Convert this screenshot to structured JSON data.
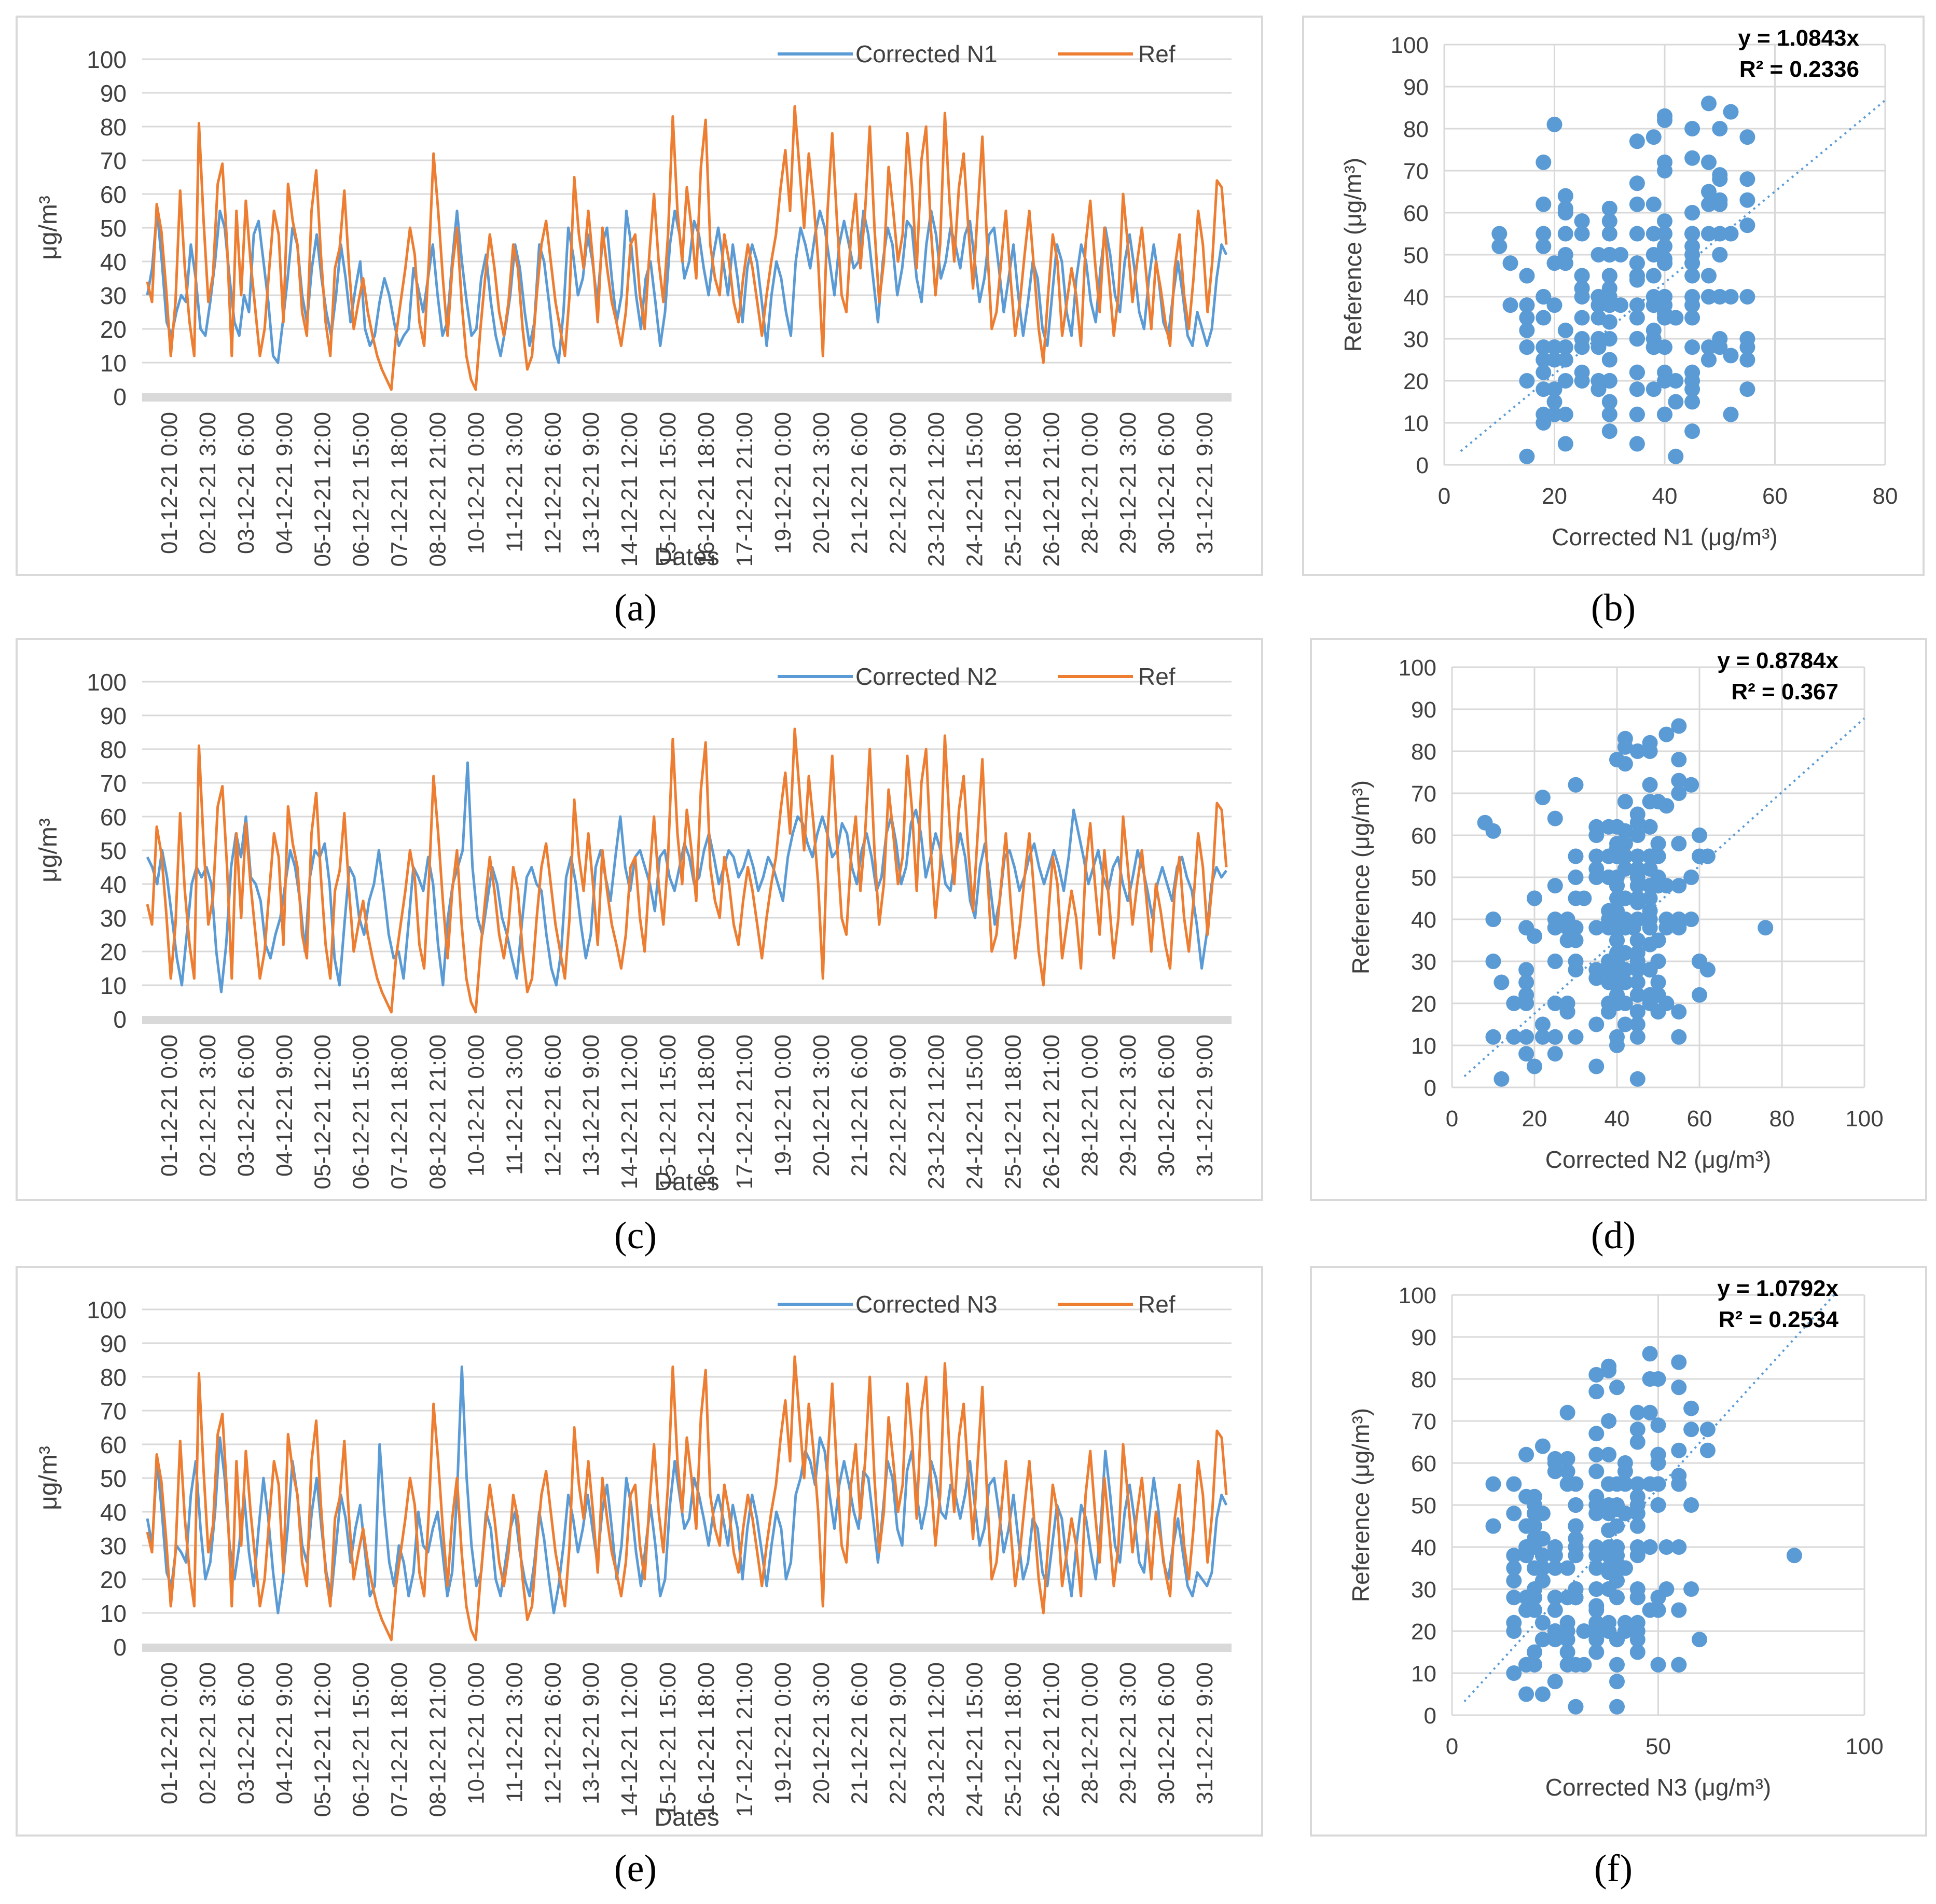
{
  "colors": {
    "blue": "#5b9bd5",
    "orange": "#ed7d31",
    "grid": "#d9d9d9",
    "text": "#404040",
    "axisBand": "#d9d9d9"
  },
  "date_labels": [
    "01-12-21 0:00",
    "02-12-21 3:00",
    "03-12-21 6:00",
    "04-12-21 9:00",
    "05-12-21 12:00",
    "06-12-21 15:00",
    "07-12-21 18:00",
    "08-12-21 21:00",
    "10-12-21 0:00",
    "11-12-21 3:00",
    "12-12-21 6:00",
    "13-12-21 9:00",
    "14-12-21 12:00",
    "15-12-21 15:00",
    "16-12-21 18:00",
    "17-12-21 21:00",
    "19-12-21 0:00",
    "20-12-21 3:00",
    "21-12-21 6:00",
    "22-12-21 9:00",
    "23-12-21 12:00",
    "24-12-21 15:00",
    "25-12-21 18:00",
    "26-12-21 21:00",
    "28-12-21 0:00",
    "29-12-21 3:00",
    "30-12-21 6:00",
    "31-12-21 9:00"
  ],
  "ref_series": [
    34,
    28,
    57,
    49,
    32,
    12,
    28,
    61,
    38,
    22,
    12,
    81,
    52,
    28,
    36,
    63,
    69,
    45,
    12,
    55,
    30,
    58,
    40,
    26,
    12,
    20,
    38,
    55,
    48,
    22,
    63,
    52,
    45,
    25,
    18,
    55,
    67,
    42,
    22,
    12,
    38,
    44,
    61,
    38,
    20,
    28,
    35,
    25,
    18,
    12,
    8,
    5,
    2,
    18,
    28,
    38,
    50,
    42,
    22,
    15,
    40,
    72,
    55,
    35,
    18,
    38,
    50,
    28,
    12,
    5,
    2,
    20,
    35,
    48,
    38,
    25,
    18,
    28,
    45,
    38,
    20,
    8,
    12,
    30,
    45,
    52,
    40,
    28,
    20,
    12,
    30,
    65,
    48,
    38,
    55,
    40,
    22,
    50,
    38,
    28,
    22,
    15,
    25,
    45,
    48,
    30,
    20,
    42,
    60,
    40,
    28,
    48,
    83,
    55,
    40,
    62,
    50,
    35,
    68,
    82,
    45,
    35,
    30,
    48,
    40,
    28,
    22,
    35,
    45,
    38,
    28,
    18,
    30,
    40,
    48,
    62,
    73,
    55,
    86,
    68,
    50,
    72,
    58,
    40,
    12,
    55,
    78,
    52,
    30,
    25,
    48,
    60,
    38,
    55,
    80,
    50,
    28,
    40,
    68,
    55,
    40,
    48,
    78,
    62,
    38,
    70,
    80,
    50,
    30,
    45,
    84,
    58,
    40,
    62,
    72,
    50,
    32,
    55,
    77,
    45,
    20,
    25,
    40,
    55,
    35,
    18,
    28,
    42,
    55,
    38,
    20,
    10,
    30,
    48,
    40,
    18,
    28,
    38,
    30,
    15,
    45,
    58,
    40,
    25,
    50,
    35,
    18,
    30,
    60,
    45,
    28,
    40,
    50,
    35,
    20,
    40,
    32,
    22,
    15,
    38,
    48,
    30,
    20,
    35,
    55,
    45,
    25,
    40,
    64,
    62,
    45
  ],
  "panels": [
    {
      "id": "a",
      "caption": "(a)",
      "title": "Corrected N1",
      "legend_blue": "Corrected N1",
      "legend_orange": "Ref",
      "ylabel": "μg/m³",
      "xlabel": "Dates",
      "y_ticks": [
        "0",
        "10",
        "20",
        "30",
        "40",
        "50",
        "60",
        "70",
        "80",
        "90",
        "100"
      ]
    },
    {
      "id": "c",
      "caption": "(c)",
      "title": "Corrected N2",
      "legend_blue": "Corrected N2",
      "legend_orange": "Ref",
      "ylabel": "μg/m³",
      "xlabel": "Dates",
      "y_ticks": [
        "0",
        "10",
        "20",
        "30",
        "40",
        "50",
        "60",
        "70",
        "80",
        "90",
        "100"
      ]
    },
    {
      "id": "e",
      "caption": "(e)",
      "title": "Corrected N3",
      "legend_blue": "Corrected N3",
      "legend_orange": "Ref",
      "ylabel": "μg/m³",
      "xlabel": "Dates",
      "y_ticks": [
        "0",
        "10",
        "20",
        "30",
        "40",
        "50",
        "60",
        "70",
        "80",
        "90",
        "100"
      ]
    }
  ],
  "scatter_panels": [
    {
      "id": "b",
      "caption": "(b)",
      "xlabel": "Corrected N1 (μg/m³)",
      "ylabel": "Reference (μg/m³)",
      "equation": "y = 1.0843x",
      "r2": "R² = 0.2336",
      "slope": 1.0843,
      "xmax": 80,
      "x_ticks": [
        "0",
        "20",
        "40",
        "60",
        "80"
      ],
      "y_ticks": [
        "0",
        "10",
        "20",
        "30",
        "40",
        "50",
        "60",
        "70",
        "80",
        "90",
        "100"
      ]
    },
    {
      "id": "d",
      "caption": "(d)",
      "xlabel": "Corrected N2 (μg/m³)",
      "ylabel": "Reference (μg/m³)",
      "equation": "y = 0.8784x",
      "r2": "R² = 0.367",
      "slope": 0.8784,
      "xmax": 100,
      "x_ticks": [
        "0",
        "20",
        "40",
        "60",
        "80",
        "100"
      ],
      "y_ticks": [
        "0",
        "10",
        "20",
        "30",
        "40",
        "50",
        "60",
        "70",
        "80",
        "90",
        "100"
      ]
    },
    {
      "id": "f",
      "caption": "(f)",
      "xlabel": "Corrected N3 (μg/m³)",
      "ylabel": "Reference (μg/m³)",
      "equation": "y = 1.0792x",
      "r2": "R² = 0.2534",
      "slope": 1.0792,
      "xmax": 100,
      "x_ticks": [
        "0",
        "50",
        "100"
      ],
      "y_ticks": [
        "0",
        "10",
        "20",
        "30",
        "40",
        "50",
        "60",
        "70",
        "80",
        "90",
        "100"
      ]
    }
  ],
  "chart_data": [
    {
      "type": "line",
      "panel": "a",
      "xlabel": "Dates",
      "ylabel": "μg/m³",
      "ylim": [
        0,
        100
      ],
      "series": [
        {
          "name": "Corrected N1",
          "values": [
            30,
            38,
            55,
            40,
            22,
            18,
            25,
            30,
            28,
            45,
            35,
            20,
            18,
            28,
            40,
            55,
            50,
            35,
            22,
            18,
            30,
            25,
            48,
            52,
            40,
            28,
            12,
            10,
            22,
            35,
            50,
            45,
            30,
            22,
            38,
            48,
            35,
            25,
            18,
            30,
            45,
            35,
            22,
            32,
            40,
            20,
            15,
            18,
            28,
            35,
            30,
            22,
            15,
            18,
            20,
            38,
            32,
            25,
            35,
            45,
            30,
            18,
            22,
            40,
            55,
            40,
            28,
            18,
            20,
            35,
            42,
            28,
            18,
            12,
            20,
            30,
            45,
            38,
            25,
            15,
            22,
            45,
            40,
            28,
            15,
            10,
            25,
            50,
            42,
            30,
            35,
            48,
            40,
            28,
            45,
            50,
            35,
            22,
            30,
            55,
            45,
            30,
            20,
            35,
            40,
            28,
            15,
            25,
            45,
            55,
            48,
            35,
            40,
            52,
            48,
            38,
            30,
            42,
            50,
            40,
            30,
            45,
            35,
            22,
            38,
            45,
            40,
            28,
            15,
            30,
            40,
            35,
            25,
            18,
            40,
            50,
            45,
            38,
            48,
            55,
            50,
            40,
            30,
            45,
            52,
            45,
            38,
            40,
            55,
            48,
            35,
            22,
            40,
            50,
            45,
            30,
            38,
            52,
            50,
            35,
            28,
            45,
            55,
            48,
            35,
            40,
            50,
            45,
            38,
            48,
            52,
            40,
            28,
            35,
            48,
            50,
            38,
            25,
            35,
            45,
            30,
            18,
            28,
            40,
            35,
            20,
            15,
            30,
            45,
            40,
            25,
            18,
            35,
            45,
            40,
            28,
            22,
            38,
            50,
            42,
            30,
            25,
            40,
            48,
            38,
            25,
            20,
            35,
            45,
            35,
            22,
            18,
            30,
            40,
            30,
            18,
            15,
            25,
            20,
            15,
            20,
            35,
            45,
            42
          ]
        },
        {
          "name": "Ref",
          "values": "ref_series"
        }
      ]
    },
    {
      "type": "scatter",
      "panel": "b",
      "xlabel": "Corrected N1 (μg/m³)",
      "ylabel": "Reference (μg/m³)",
      "xlim": [
        0,
        80
      ],
      "ylim": [
        0,
        100
      ],
      "trendline": "y = 1.0843x",
      "r2": 0.2336
    },
    {
      "type": "line",
      "panel": "c",
      "xlabel": "Dates",
      "ylabel": "μg/m³",
      "ylim": [
        0,
        100
      ],
      "series": [
        {
          "name": "Corrected N2",
          "values": [
            48,
            45,
            40,
            50,
            42,
            30,
            18,
            10,
            25,
            40,
            45,
            42,
            45,
            40,
            20,
            8,
            22,
            45,
            55,
            48,
            60,
            42,
            40,
            35,
            22,
            18,
            25,
            30,
            40,
            50,
            45,
            35,
            20,
            42,
            50,
            48,
            52,
            40,
            18,
            10,
            28,
            45,
            42,
            30,
            25,
            35,
            40,
            50,
            38,
            25,
            18,
            20,
            12,
            28,
            45,
            42,
            38,
            48,
            40,
            22,
            10,
            30,
            40,
            45,
            50,
            76,
            45,
            30,
            25,
            35,
            45,
            40,
            30,
            25,
            18,
            12,
            28,
            42,
            45,
            40,
            38,
            25,
            15,
            10,
            20,
            42,
            48,
            40,
            28,
            18,
            25,
            45,
            50,
            42,
            35,
            48,
            60,
            45,
            38,
            48,
            50,
            45,
            40,
            32,
            48,
            50,
            42,
            38,
            45,
            52,
            48,
            40,
            42,
            50,
            55,
            48,
            40,
            45,
            50,
            48,
            42,
            45,
            50,
            45,
            38,
            42,
            48,
            45,
            40,
            35,
            48,
            55,
            60,
            58,
            52,
            48,
            55,
            60,
            55,
            48,
            50,
            58,
            55,
            45,
            40,
            50,
            55,
            48,
            38,
            42,
            55,
            60,
            52,
            40,
            45,
            58,
            62,
            55,
            42,
            48,
            55,
            50,
            40,
            38,
            48,
            55,
            48,
            35,
            30,
            45,
            52,
            40,
            28,
            35,
            48,
            50,
            45,
            38,
            42,
            48,
            52,
            45,
            40,
            45,
            50,
            45,
            38,
            48,
            62,
            55,
            48,
            40,
            45,
            50,
            42,
            38,
            45,
            48,
            40,
            35,
            42,
            50,
            45,
            38,
            30,
            40,
            45,
            40,
            35,
            45,
            48,
            42,
            38,
            28,
            15,
            25,
            40,
            45,
            42,
            44
          ]
        },
        {
          "name": "Ref",
          "values": "ref_series"
        }
      ]
    },
    {
      "type": "scatter",
      "panel": "d",
      "xlabel": "Corrected N2 (μg/m³)",
      "ylabel": "Reference (μg/m³)",
      "xlim": [
        0,
        100
      ],
      "ylim": [
        0,
        100
      ],
      "trendline": "y = 0.8784x",
      "r2": 0.367
    },
    {
      "type": "line",
      "panel": "e",
      "xlabel": "Dates",
      "ylabel": "μg/m³",
      "ylim": [
        0,
        100
      ],
      "series": [
        {
          "name": "Corrected N3",
          "values": [
            38,
            30,
            55,
            40,
            22,
            18,
            30,
            28,
            25,
            45,
            55,
            35,
            20,
            25,
            40,
            62,
            50,
            30,
            20,
            30,
            45,
            28,
            18,
            35,
            50,
            38,
            22,
            10,
            20,
            35,
            55,
            45,
            30,
            25,
            40,
            50,
            35,
            22,
            15,
            30,
            45,
            38,
            25,
            35,
            42,
            28,
            15,
            18,
            60,
            40,
            25,
            18,
            30,
            25,
            15,
            22,
            40,
            30,
            28,
            35,
            40,
            28,
            15,
            22,
            45,
            83,
            50,
            30,
            18,
            22,
            40,
            35,
            20,
            15,
            25,
            35,
            40,
            28,
            20,
            15,
            25,
            40,
            32,
            20,
            10,
            18,
            30,
            45,
            38,
            28,
            35,
            45,
            35,
            25,
            40,
            48,
            35,
            20,
            30,
            50,
            42,
            28,
            18,
            30,
            42,
            30,
            15,
            20,
            42,
            55,
            45,
            35,
            38,
            50,
            45,
            38,
            30,
            40,
            45,
            38,
            30,
            42,
            35,
            20,
            35,
            45,
            38,
            28,
            18,
            30,
            40,
            35,
            20,
            25,
            45,
            50,
            58,
            55,
            48,
            62,
            58,
            45,
            35,
            48,
            55,
            48,
            40,
            35,
            52,
            50,
            38,
            25,
            40,
            55,
            50,
            35,
            30,
            52,
            58,
            45,
            35,
            42,
            55,
            50,
            40,
            38,
            48,
            45,
            38,
            45,
            55,
            42,
            30,
            35,
            48,
            50,
            40,
            28,
            35,
            45,
            32,
            20,
            25,
            38,
            35,
            22,
            18,
            30,
            42,
            38,
            25,
            15,
            30,
            42,
            38,
            28,
            20,
            35,
            58,
            45,
            30,
            25,
            40,
            48,
            38,
            25,
            22,
            38,
            50,
            40,
            25,
            20,
            30,
            38,
            28,
            18,
            15,
            22,
            20,
            18,
            22,
            38,
            45,
            42
          ]
        },
        {
          "name": "Ref",
          "values": "ref_series"
        }
      ]
    },
    {
      "type": "scatter",
      "panel": "f",
      "xlabel": "Corrected N3 (μg/m³)",
      "ylabel": "Reference (μg/m³)",
      "xlim": [
        0,
        100
      ],
      "ylim": [
        0,
        100
      ],
      "trendline": "y = 1.0792x",
      "r2": 0.2534
    }
  ]
}
